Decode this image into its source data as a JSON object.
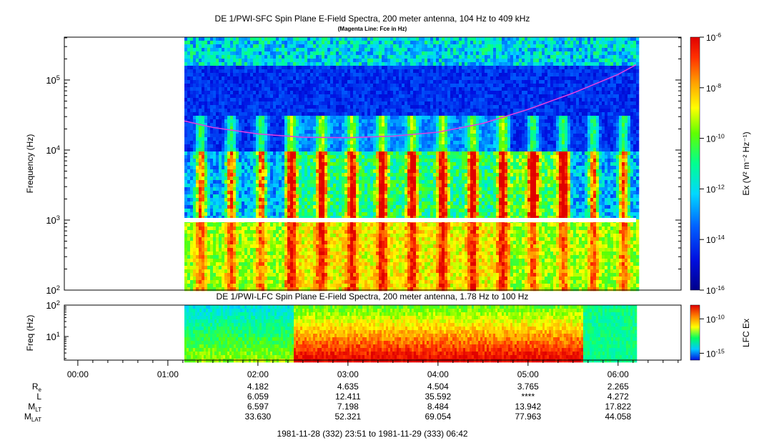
{
  "chart_data": [
    {
      "type": "heatmap",
      "title": "DE 1/PWI-SFC  Spin Plane E-Field Spectra, 200 meter antenna, 104 Hz to 409 kHz",
      "subtitle": "(Magenta Line: Fce in Hz)",
      "ylabel": "Frequency (Hz)",
      "yscale": "log",
      "ylim": [
        100,
        409000
      ],
      "y_ticks": [
        {
          "value": 100,
          "base": "10",
          "exp": "2"
        },
        {
          "value": 1000,
          "base": "10",
          "exp": "3"
        },
        {
          "value": 10000,
          "base": "10",
          "exp": "4"
        },
        {
          "value": 100000,
          "base": "10",
          "exp": "5"
        }
      ],
      "data_start_time": "01:11",
      "data_end_time": "06:12",
      "gap_hz": [
        1000,
        1050
      ],
      "colorbar": {
        "label": "Ex (V² m⁻² Hz⁻¹)",
        "scale": "log",
        "range": [
          1e-16,
          1e-06
        ],
        "ticks": [
          {
            "value": 1e-06,
            "base": "10",
            "exp": "-6"
          },
          {
            "value": 1e-08,
            "base": "10",
            "exp": "-8"
          },
          {
            "value": 1e-10,
            "base": "10",
            "exp": "-10"
          },
          {
            "value": 1e-12,
            "base": "10",
            "exp": "-12"
          },
          {
            "value": 1e-14,
            "base": "10",
            "exp": "-14"
          },
          {
            "value": 1e-16,
            "base": "10",
            "exp": "-16"
          }
        ]
      },
      "fce_line": {
        "color": "#e040e0",
        "points": [
          {
            "t": "01:11",
            "hz": 26000
          },
          {
            "t": "01:30",
            "hz": 21000
          },
          {
            "t": "02:00",
            "hz": 17000
          },
          {
            "t": "02:30",
            "hz": 15200
          },
          {
            "t": "03:00",
            "hz": 15000
          },
          {
            "t": "03:30",
            "hz": 15800
          },
          {
            "t": "04:00",
            "hz": 18000
          },
          {
            "t": "04:30",
            "hz": 24000
          },
          {
            "t": "05:00",
            "hz": 38000
          },
          {
            "t": "05:30",
            "hz": 65000
          },
          {
            "t": "06:00",
            "hz": 120000
          },
          {
            "t": "06:12",
            "hz": 165000
          }
        ]
      }
    },
    {
      "type": "heatmap",
      "title": "DE 1/PWI-LFC  Spin Plane E-Field Spectra, 200 meter antenna, 1.78 Hz to 100 Hz",
      "ylabel": "Freq (Hz)",
      "yscale": "log",
      "ylim": [
        1.78,
        100
      ],
      "y_ticks": [
        {
          "value": 10,
          "base": "10",
          "exp": "1"
        },
        {
          "value": 100,
          "base": "10",
          "exp": "2"
        }
      ],
      "data_start_time": "01:11",
      "data_end_time": "06:12",
      "colorbar": {
        "label": "LFC Ex",
        "scale": "log",
        "range": [
          1e-16,
          1e-08
        ],
        "ticks": [
          {
            "value": 1e-10,
            "base": "10",
            "exp": "-10"
          },
          {
            "value": 1e-15,
            "base": "10",
            "exp": "-15"
          }
        ]
      }
    }
  ],
  "time_axis": {
    "range": [
      "23:51",
      "06:42"
    ],
    "major_ticks": [
      "00:00",
      "01:00",
      "02:00",
      "03:00",
      "04:00",
      "05:00",
      "06:00"
    ],
    "footer": "1981-11-28 (332) 23:51 to 1981-11-29 (333) 06:42"
  },
  "ephemeris": {
    "rows": [
      {
        "label": "R",
        "sub": "e",
        "values": [
          "4.182",
          "4.635",
          "4.504",
          "3.765",
          "2.265"
        ]
      },
      {
        "label": "L",
        "sub": "",
        "values": [
          "6.059",
          "12.411",
          "35.592",
          "****",
          "4.272"
        ]
      },
      {
        "label": "M",
        "sub": "LT",
        "values": [
          "6.597",
          "7.198",
          "8.484",
          "13.942",
          "17.822"
        ]
      },
      {
        "label": "M",
        "sub": "LAT",
        "values": [
          "33.630",
          "52.321",
          "69.054",
          "77.963",
          "44.058"
        ]
      }
    ],
    "times": [
      "02:00",
      "03:00",
      "04:00",
      "05:00",
      "06:00"
    ]
  }
}
